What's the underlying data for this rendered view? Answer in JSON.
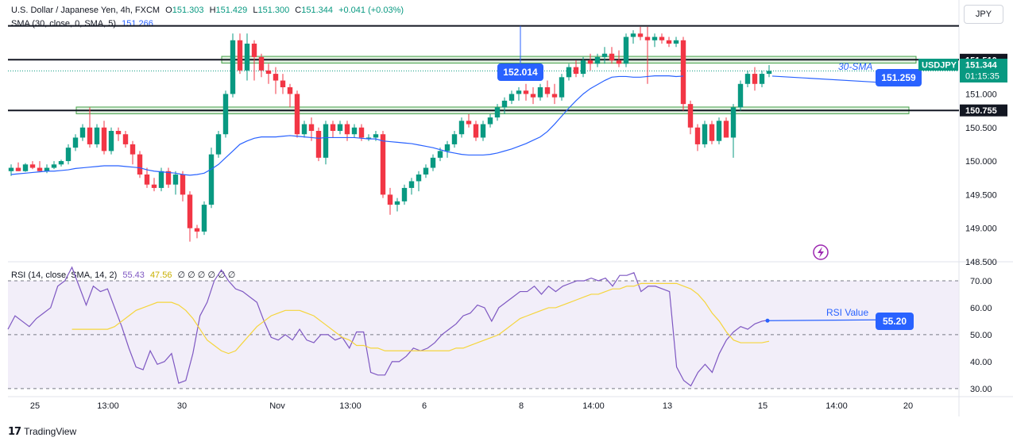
{
  "header": {
    "symbol_line": "U.S. Dollar / Japanese Yen, 4h, FXCM",
    "o_label": "O",
    "o_value": "151.303",
    "h_label": "H",
    "h_value": "151.429",
    "l_label": "L",
    "l_value": "151.300",
    "c_label": "C",
    "c_value": "151.344",
    "change": "+0.041 (+0.03%)",
    "sma_line": "SMA (30, close, 0, SMA, 5)",
    "sma_value": "151.266"
  },
  "rsi_header": {
    "line": "RSI (14, close, SMA, 14, 2)",
    "rsi_value": "55.43",
    "sma_value": "47.56",
    "zeros": "∅ ∅ ∅ ∅ ∅ ∅"
  },
  "currency_button": "JPY",
  "branding": "TradingView",
  "colors": {
    "up": "#089981",
    "down": "#f23645",
    "sma": "#2962ff",
    "rsi": "#7e57c2",
    "rsi_sma": "#f5d53c",
    "zone_fill": "#c8e6c9",
    "rsi_band": "#ede7f6"
  },
  "chart_data": [
    {
      "type": "candlestick",
      "ylim": [
        148.5,
        152.4
      ],
      "y_ticks": [
        "148.500",
        "149.000",
        "149.500",
        "150.000",
        "150.500",
        "151.000",
        "151.500"
      ],
      "x_ticks": [
        "25",
        "13:00",
        "30",
        "Nov",
        "13:00",
        "6",
        "8",
        "14:00",
        "13",
        "15",
        "14:00",
        "20"
      ],
      "price_labels": {
        "resistance": "151.510",
        "support": "150.755",
        "last_symbol": "USDJPY",
        "last_price": "151.344",
        "countdown": "01:15:35"
      },
      "annotations": {
        "high_marker": "152.014",
        "sma_label": "30-SMA",
        "sma_marker": "151.259"
      },
      "ohlc": [
        [
          149.85,
          149.95,
          149.78,
          149.9
        ],
        [
          149.9,
          149.98,
          149.85,
          149.85
        ],
        [
          149.85,
          149.97,
          149.84,
          149.95
        ],
        [
          149.95,
          150.0,
          149.88,
          149.9
        ],
        [
          149.9,
          150.0,
          149.85,
          149.85
        ],
        [
          149.85,
          149.95,
          149.82,
          149.9
        ],
        [
          149.9,
          150.0,
          149.88,
          149.95
        ],
        [
          149.95,
          150.02,
          149.92,
          150.0
        ],
        [
          150.0,
          150.25,
          149.95,
          150.2
        ],
        [
          150.2,
          150.4,
          150.15,
          150.35
        ],
        [
          150.35,
          150.55,
          150.3,
          150.5
        ],
        [
          150.5,
          150.8,
          150.2,
          150.25
        ],
        [
          150.25,
          150.55,
          150.2,
          150.5
        ],
        [
          150.5,
          150.6,
          150.1,
          150.15
        ],
        [
          150.15,
          150.5,
          150.1,
          150.45
        ],
        [
          150.45,
          150.5,
          150.3,
          150.4
        ],
        [
          150.4,
          150.45,
          150.2,
          150.25
        ],
        [
          150.25,
          150.3,
          149.95,
          150.1
        ],
        [
          150.1,
          150.15,
          149.75,
          149.8
        ],
        [
          149.8,
          149.9,
          149.6,
          149.65
        ],
        [
          149.65,
          149.75,
          149.55,
          149.6
        ],
        [
          149.6,
          149.9,
          149.55,
          149.85
        ],
        [
          149.85,
          149.9,
          149.6,
          149.65
        ],
        [
          149.65,
          149.85,
          149.5,
          149.8
        ],
        [
          149.8,
          149.85,
          149.4,
          149.5
        ],
        [
          149.5,
          149.55,
          148.8,
          149.0
        ],
        [
          149.0,
          149.05,
          148.85,
          148.95
        ],
        [
          148.95,
          149.4,
          148.9,
          149.35
        ],
        [
          149.35,
          150.2,
          149.3,
          150.1
        ],
        [
          150.1,
          150.45,
          150.05,
          150.4
        ],
        [
          150.4,
          151.05,
          150.35,
          151.0
        ],
        [
          151.0,
          151.9,
          150.95,
          151.8
        ],
        [
          151.8,
          151.9,
          151.3,
          151.35
        ],
        [
          151.35,
          151.9,
          151.2,
          151.75
        ],
        [
          151.75,
          151.8,
          151.2,
          151.55
        ],
        [
          151.55,
          151.6,
          151.25,
          151.35
        ],
        [
          151.35,
          151.45,
          151.15,
          151.3
        ],
        [
          151.3,
          151.4,
          151.0,
          151.2
        ],
        [
          151.2,
          151.3,
          151.0,
          151.1
        ],
        [
          151.1,
          151.15,
          150.8,
          151.0
        ],
        [
          151.0,
          151.05,
          150.35,
          150.4
        ],
        [
          150.4,
          150.6,
          150.35,
          150.55
        ],
        [
          150.55,
          150.65,
          150.3,
          150.45
        ],
        [
          150.45,
          150.5,
          150.0,
          150.05
        ],
        [
          150.05,
          150.6,
          149.95,
          150.55
        ],
        [
          150.55,
          150.6,
          150.35,
          150.45
        ],
        [
          150.45,
          150.6,
          150.4,
          150.55
        ],
        [
          150.55,
          150.6,
          150.3,
          150.4
        ],
        [
          150.4,
          150.55,
          150.35,
          150.5
        ],
        [
          150.5,
          150.55,
          150.3,
          150.35
        ],
        [
          150.35,
          150.4,
          150.3,
          150.35
        ],
        [
          150.35,
          150.45,
          150.3,
          150.4
        ],
        [
          150.4,
          150.45,
          149.45,
          149.5
        ],
        [
          149.5,
          149.6,
          149.2,
          149.35
        ],
        [
          149.35,
          149.45,
          149.25,
          149.4
        ],
        [
          149.4,
          149.65,
          149.35,
          149.6
        ],
        [
          149.6,
          149.75,
          149.5,
          149.7
        ],
        [
          149.7,
          149.85,
          149.55,
          149.8
        ],
        [
          149.8,
          149.95,
          149.75,
          149.9
        ],
        [
          149.9,
          150.1,
          149.85,
          150.05
        ],
        [
          150.05,
          150.2,
          150.0,
          150.15
        ],
        [
          150.15,
          150.3,
          150.05,
          150.25
        ],
        [
          150.25,
          150.45,
          150.2,
          150.4
        ],
        [
          150.4,
          150.65,
          150.35,
          150.6
        ],
        [
          150.6,
          150.7,
          150.5,
          150.55
        ],
        [
          150.55,
          150.6,
          150.3,
          150.35
        ],
        [
          150.35,
          150.6,
          150.3,
          150.55
        ],
        [
          150.55,
          150.7,
          150.5,
          150.65
        ],
        [
          150.65,
          150.85,
          150.6,
          150.8
        ],
        [
          150.8,
          150.95,
          150.7,
          150.9
        ],
        [
          150.9,
          151.05,
          150.85,
          151.0
        ],
        [
          151.0,
          151.1,
          150.9,
          151.05
        ],
        [
          151.05,
          151.15,
          150.9,
          151.0
        ],
        [
          151.0,
          151.1,
          150.85,
          150.95
        ],
        [
          150.95,
          151.15,
          150.9,
          151.1
        ],
        [
          151.1,
          151.2,
          150.95,
          151.0
        ],
        [
          151.0,
          151.15,
          150.85,
          150.95
        ],
        [
          150.95,
          151.3,
          150.9,
          151.25
        ],
        [
          151.25,
          151.45,
          151.2,
          151.4
        ],
        [
          151.4,
          151.5,
          151.25,
          151.3
        ],
        [
          151.3,
          151.55,
          151.25,
          151.5
        ],
        [
          151.5,
          151.6,
          151.35,
          151.45
        ],
        [
          151.45,
          151.6,
          151.4,
          151.55
        ],
        [
          151.55,
          151.7,
          151.45,
          151.6
        ],
        [
          151.6,
          151.7,
          151.45,
          151.5
        ],
        [
          151.5,
          151.65,
          151.4,
          151.45
        ],
        [
          151.45,
          151.9,
          151.4,
          151.85
        ],
        [
          151.85,
          151.95,
          151.75,
          151.9
        ],
        [
          151.9,
          152.0,
          151.8,
          151.85
        ],
        [
          151.85,
          152.0,
          151.15,
          151.8
        ],
        [
          151.8,
          151.9,
          151.7,
          151.85
        ],
        [
          151.85,
          151.9,
          151.75,
          151.8
        ],
        [
          151.8,
          151.85,
          151.7,
          151.75
        ],
        [
          151.75,
          151.85,
          151.7,
          151.8
        ],
        [
          151.8,
          151.85,
          150.75,
          150.85
        ],
        [
          150.85,
          150.9,
          150.4,
          150.5
        ],
        [
          150.5,
          150.55,
          150.15,
          150.25
        ],
        [
          150.25,
          150.6,
          150.2,
          150.55
        ],
        [
          150.55,
          150.6,
          150.25,
          150.3
        ],
        [
          150.3,
          150.65,
          150.25,
          150.6
        ],
        [
          150.6,
          150.65,
          150.35,
          150.35
        ],
        [
          150.35,
          150.85,
          150.05,
          150.8
        ],
        [
          150.8,
          151.2,
          150.75,
          151.15
        ],
        [
          151.15,
          151.35,
          151.1,
          151.3
        ],
        [
          151.3,
          151.4,
          151.05,
          151.15
        ],
        [
          151.15,
          151.35,
          151.1,
          151.3
        ],
        [
          151.3,
          151.429,
          151.25,
          151.344
        ]
      ],
      "sma": [
        149.8,
        149.81,
        149.82,
        149.83,
        149.84,
        149.85,
        149.85,
        149.86,
        149.87,
        149.89,
        149.9,
        149.91,
        149.92,
        149.93,
        149.93,
        149.93,
        149.92,
        149.91,
        149.9,
        149.87,
        149.85,
        149.84,
        149.83,
        149.82,
        149.8,
        149.79,
        149.8,
        149.82,
        149.88,
        149.95,
        150.05,
        150.15,
        150.25,
        150.3,
        150.34,
        150.36,
        150.36,
        150.36,
        150.37,
        150.38,
        150.37,
        150.36,
        150.35,
        150.34,
        150.35,
        150.35,
        150.35,
        150.35,
        150.35,
        150.34,
        150.33,
        150.33,
        150.3,
        150.29,
        150.28,
        150.27,
        150.26,
        150.24,
        150.22,
        150.2,
        150.17,
        150.14,
        150.12,
        150.1,
        150.09,
        150.09,
        150.09,
        150.1,
        150.12,
        150.15,
        150.18,
        150.22,
        150.26,
        150.31,
        150.36,
        150.44,
        150.55,
        150.67,
        150.79,
        150.9,
        151.0,
        151.08,
        151.14,
        151.2,
        151.25,
        151.26,
        151.26,
        151.25,
        151.25,
        151.26,
        151.27,
        151.27,
        151.27,
        151.26,
        151.266
      ]
    },
    {
      "type": "line",
      "ylim": [
        27,
        75
      ],
      "y_ticks": [
        "30.00",
        "40.00",
        "50.00",
        "60.00",
        "70.00"
      ],
      "band": [
        30,
        70
      ],
      "midline": 50,
      "annotations": {
        "label": "RSI Value",
        "marker": "55.20"
      },
      "series": [
        {
          "name": "RSI",
          "values": [
            52,
            57,
            55,
            53,
            56,
            58,
            60,
            68,
            70,
            75,
            68,
            61,
            68,
            66,
            67,
            60,
            53,
            45,
            38,
            37,
            44,
            39,
            40,
            43,
            32,
            33,
            43,
            57,
            62,
            70,
            74,
            70,
            67,
            66,
            64,
            62,
            55,
            49,
            48,
            50,
            48,
            52,
            48,
            47,
            50,
            50,
            48,
            49,
            45,
            51,
            51,
            36,
            35,
            35,
            40,
            40,
            42,
            45,
            44,
            45,
            47,
            50,
            52,
            54,
            57,
            58,
            61,
            60,
            55,
            60,
            62,
            64,
            66,
            66,
            68,
            65,
            68,
            66,
            68,
            69,
            70,
            70,
            71,
            70,
            71,
            68,
            72,
            72,
            73,
            66,
            68,
            68,
            67,
            66,
            38,
            33,
            31,
            36,
            39,
            36,
            43,
            48,
            51,
            53,
            52,
            54,
            55,
            55.43
          ]
        },
        {
          "name": "SMA",
          "values": [
            52,
            52,
            52,
            52,
            52,
            52,
            53,
            55,
            57,
            59,
            60,
            61,
            62,
            62,
            62,
            61,
            59,
            56,
            52,
            48,
            46,
            44,
            43,
            44,
            47,
            50,
            53,
            55,
            57,
            58,
            59,
            59,
            59,
            58,
            57,
            55,
            53,
            51,
            49,
            48,
            46,
            46,
            45,
            45,
            44,
            44,
            44,
            44,
            44,
            44,
            44,
            44,
            44,
            44,
            45,
            45,
            46,
            47,
            48,
            49,
            50,
            52,
            54,
            56,
            57,
            58,
            59,
            60,
            60,
            61,
            62,
            63,
            64,
            65,
            65,
            66,
            67,
            67,
            68,
            68,
            69,
            69,
            69,
            69,
            69,
            69,
            68,
            67,
            65,
            62,
            58,
            55,
            51,
            48,
            47,
            47,
            47,
            47,
            47.56
          ]
        }
      ]
    }
  ]
}
